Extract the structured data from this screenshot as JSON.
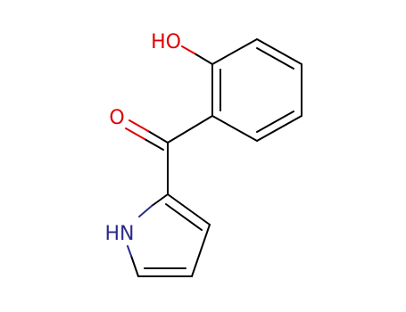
{
  "atoms": [
    {
      "label": "HO"
    },
    {
      "label": "O"
    },
    {
      "label": "HN"
    }
  ]
}
